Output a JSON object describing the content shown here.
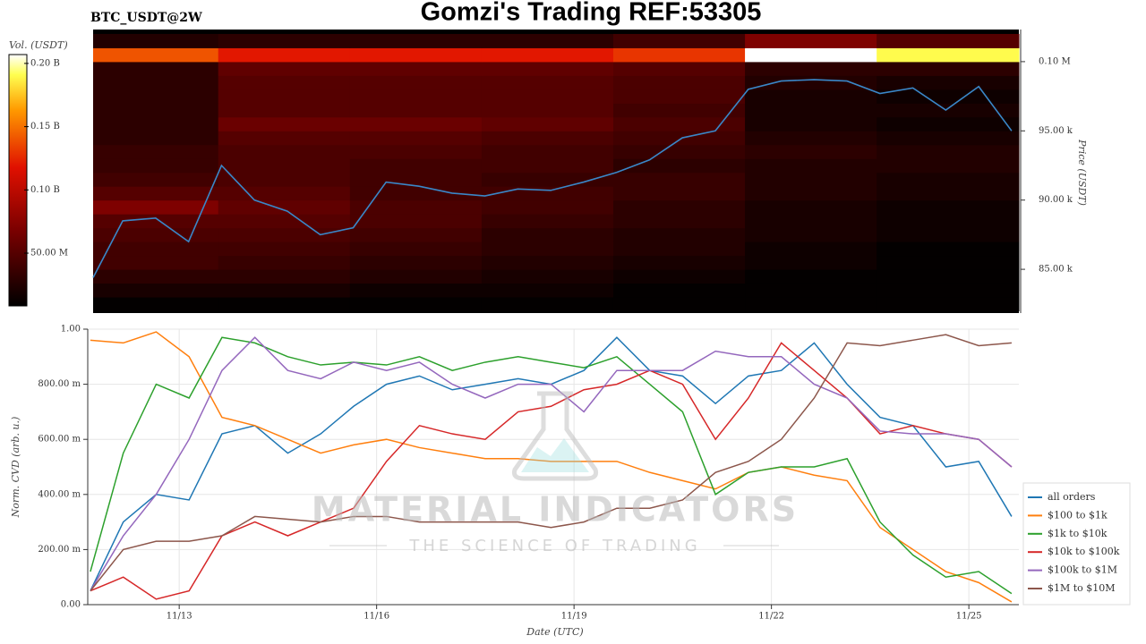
{
  "header": {
    "symbol": "BTC_USDT@2W",
    "title": "Gomzi's Trading REF:53305"
  },
  "watermark": {
    "brand": "MATERIAL INDICATORS",
    "tagline": "THE SCIENCE OF TRADING"
  },
  "chart_data": [
    {
      "type": "heatmap",
      "xlim": [
        11.7,
        25.76
      ],
      "ylim": [
        81840,
        102320
      ],
      "yticks": [
        {
          "value": 85000,
          "label": "85.00 k"
        },
        {
          "value": 90000,
          "label": "90.00 k"
        },
        {
          "value": 95000,
          "label": "95.00 k"
        },
        {
          "value": 100000,
          "label": "0.10 M"
        }
      ],
      "ylabel": "Price (USDT)",
      "zlabel": "Vol. (USDT)",
      "zlim": [
        8300000,
        207000000
      ],
      "zticks": [
        {
          "value": 50000000,
          "label": "50.00 M"
        },
        {
          "value": 100000000,
          "label": "0.10 B"
        },
        {
          "value": 150000000,
          "label": "0.15 B"
        },
        {
          "value": 200000000,
          "label": "0.20 B"
        }
      ],
      "colorscale": [
        [
          0,
          "#000000"
        ],
        [
          0.3,
          "#7a0000"
        ],
        [
          0.55,
          "#e01000"
        ],
        [
          0.78,
          "#ff9a00"
        ],
        [
          0.92,
          "#ffff50"
        ],
        [
          1,
          "#ffffff"
        ]
      ],
      "x_bins": [
        11.7,
        13.6,
        15.6,
        17.6,
        19.6,
        21.6,
        23.6,
        25.76
      ],
      "y_bins": [
        82000,
        83000,
        84000,
        85000,
        86000,
        87000,
        88000,
        89000,
        90000,
        91000,
        92000,
        93000,
        94000,
        95000,
        96000,
        97000,
        98000,
        99000,
        100000,
        101000,
        102000
      ],
      "z": [
        [
          10000000.0,
          10000000.0,
          10000000.0,
          10000000.0,
          10000000.0,
          10000000.0,
          10000000.0
        ],
        [
          20000000.0,
          20000000.0,
          15000000.0,
          15000000.0,
          10000000.0,
          10000000.0,
          10000000.0
        ],
        [
          30000000.0,
          30000000.0,
          25000000.0,
          20000000.0,
          15000000.0,
          10000000.0,
          10000000.0
        ],
        [
          40000000.0,
          35000000.0,
          30000000.0,
          25000000.0,
          20000000.0,
          15000000.0,
          10000000.0
        ],
        [
          40000000.0,
          40000000.0,
          35000000.0,
          30000000.0,
          25000000.0,
          15000000.0,
          10000000.0
        ],
        [
          45000000.0,
          45000000.0,
          40000000.0,
          30000000.0,
          25000000.0,
          20000000.0,
          15000000.0
        ],
        [
          50000000.0,
          50000000.0,
          45000000.0,
          35000000.0,
          30000000.0,
          20000000.0,
          15000000.0
        ],
        [
          70000000.0,
          55000000.0,
          45000000.0,
          40000000.0,
          30000000.0,
          20000000.0,
          15000000.0
        ],
        [
          50000000.0,
          50000000.0,
          40000000.0,
          40000000.0,
          35000000.0,
          25000000.0,
          20000000.0
        ],
        [
          40000000.0,
          45000000.0,
          40000000.0,
          35000000.0,
          35000000.0,
          25000000.0,
          20000000.0
        ],
        [
          35000000.0,
          45000000.0,
          40000000.0,
          40000000.0,
          30000000.0,
          25000000.0,
          25000000.0
        ],
        [
          35000000.0,
          45000000.0,
          45000000.0,
          40000000.0,
          35000000.0,
          30000000.0,
          25000000.0
        ],
        [
          30000000.0,
          50000000.0,
          50000000.0,
          45000000.0,
          40000000.0,
          25000000.0,
          20000000.0
        ],
        [
          30000000.0,
          60000000.0,
          60000000.0,
          55000000.0,
          45000000.0,
          20000000.0,
          15000000.0
        ],
        [
          30000000.0,
          50000000.0,
          50000000.0,
          50000000.0,
          40000000.0,
          20000000.0,
          20000000.0
        ],
        [
          30000000.0,
          50000000.0,
          50000000.0,
          50000000.0,
          45000000.0,
          20000000.0,
          15000000.0
        ],
        [
          30000000.0,
          50000000.0,
          50000000.0,
          50000000.0,
          45000000.0,
          25000000.0,
          20000000.0
        ],
        [
          30000000.0,
          55000000.0,
          55000000.0,
          55000000.0,
          50000000.0,
          30000000.0,
          30000000.0
        ],
        [
          140000000.0,
          120000000.0,
          120000000.0,
          120000000.0,
          130000000.0,
          207000000.0,
          190000000.0
        ],
        [
          25000000.0,
          30000000.0,
          30000000.0,
          30000000.0,
          40000000.0,
          70000000.0,
          50000000.0
        ]
      ],
      "price": {
        "color": "#3a87c8",
        "x": [
          11.7,
          12.15,
          12.65,
          13.15,
          13.65,
          14.15,
          14.65,
          15.15,
          15.65,
          16.15,
          16.65,
          17.15,
          17.65,
          18.15,
          18.65,
          19.15,
          19.65,
          20.15,
          20.65,
          21.15,
          21.65,
          22.15,
          22.65,
          23.15,
          23.65,
          24.15,
          24.65,
          25.15,
          25.65
        ],
        "values": [
          84400,
          88500,
          88700,
          87000,
          92500,
          90000,
          89200,
          87500,
          88000,
          91300,
          91000,
          90500,
          90300,
          90800,
          90700,
          91300,
          92000,
          92900,
          94500,
          95000,
          98000,
          98600,
          98700,
          98600,
          97700,
          98100,
          96500,
          98200,
          95000
        ]
      }
    },
    {
      "type": "line",
      "xlim": [
        11.61,
        25.76
      ],
      "xticks": [
        {
          "value": 13,
          "label": "11/13"
        },
        {
          "value": 16,
          "label": "11/16"
        },
        {
          "value": 19,
          "label": "11/19"
        },
        {
          "value": 22,
          "label": "11/22"
        },
        {
          "value": 25,
          "label": "11/25"
        }
      ],
      "xlabel": "Date (UTC)",
      "ylim": [
        0,
        1
      ],
      "yticks": [
        {
          "value": 0,
          "label": "0.00"
        },
        {
          "value": 0.2,
          "label": "200.00 m"
        },
        {
          "value": 0.4,
          "label": "400.00 m"
        },
        {
          "value": 0.6,
          "label": "600.00 m"
        },
        {
          "value": 0.8,
          "label": "800.00 m"
        },
        {
          "value": 1,
          "label": "1.00"
        }
      ],
      "ylabel": "Norm. CVD (arb. u.)",
      "grid": true,
      "legend": "lower right",
      "x": [
        11.65,
        12.15,
        12.65,
        13.15,
        13.65,
        14.15,
        14.65,
        15.15,
        15.65,
        16.15,
        16.65,
        17.15,
        17.65,
        18.15,
        18.65,
        19.15,
        19.65,
        20.15,
        20.65,
        21.15,
        21.65,
        22.15,
        22.65,
        23.15,
        23.65,
        24.15,
        24.65,
        25.15,
        25.65
      ],
      "series": [
        {
          "name": "all orders",
          "color": "#1f77b4",
          "values": [
            0.05,
            0.3,
            0.4,
            0.38,
            0.62,
            0.65,
            0.55,
            0.62,
            0.72,
            0.8,
            0.83,
            0.78,
            0.8,
            0.82,
            0.8,
            0.85,
            0.97,
            0.85,
            0.83,
            0.73,
            0.83,
            0.85,
            0.95,
            0.8,
            0.68,
            0.65,
            0.5,
            0.52,
            0.32
          ]
        },
        {
          "name": "$100 to $1k",
          "color": "#ff7f0e",
          "values": [
            0.96,
            0.95,
            0.99,
            0.9,
            0.68,
            0.65,
            0.6,
            0.55,
            0.58,
            0.6,
            0.57,
            0.55,
            0.53,
            0.53,
            0.52,
            0.52,
            0.52,
            0.48,
            0.45,
            0.42,
            0.48,
            0.5,
            0.47,
            0.45,
            0.28,
            0.2,
            0.12,
            0.08,
            0.01
          ]
        },
        {
          "name": "$1k to $10k",
          "color": "#2ca02c",
          "values": [
            0.12,
            0.55,
            0.8,
            0.75,
            0.97,
            0.95,
            0.9,
            0.87,
            0.88,
            0.87,
            0.9,
            0.85,
            0.88,
            0.9,
            0.88,
            0.86,
            0.9,
            0.8,
            0.7,
            0.4,
            0.48,
            0.5,
            0.5,
            0.53,
            0.3,
            0.18,
            0.1,
            0.12,
            0.04
          ]
        },
        {
          "name": "$10k to $100k",
          "color": "#d62728",
          "values": [
            0.05,
            0.1,
            0.02,
            0.05,
            0.25,
            0.3,
            0.25,
            0.3,
            0.35,
            0.52,
            0.65,
            0.62,
            0.6,
            0.7,
            0.72,
            0.78,
            0.8,
            0.85,
            0.8,
            0.6,
            0.75,
            0.95,
            0.85,
            0.75,
            0.62,
            0.65,
            0.62,
            0.6,
            0.5
          ]
        },
        {
          "name": "$100k to $1M",
          "color": "#9467bd",
          "values": [
            0.05,
            0.25,
            0.4,
            0.6,
            0.85,
            0.97,
            0.85,
            0.82,
            0.88,
            0.85,
            0.88,
            0.8,
            0.75,
            0.8,
            0.8,
            0.7,
            0.85,
            0.85,
            0.85,
            0.92,
            0.9,
            0.9,
            0.8,
            0.75,
            0.63,
            0.62,
            0.62,
            0.6,
            0.5
          ]
        },
        {
          "name": "$1M to $10M",
          "color": "#8c564b",
          "values": [
            0.05,
            0.2,
            0.23,
            0.23,
            0.25,
            0.32,
            0.31,
            0.3,
            0.32,
            0.32,
            0.3,
            0.3,
            0.3,
            0.3,
            0.28,
            0.3,
            0.35,
            0.35,
            0.38,
            0.48,
            0.52,
            0.6,
            0.75,
            0.95,
            0.94,
            0.96,
            0.98,
            0.94,
            0.95
          ]
        }
      ]
    }
  ]
}
